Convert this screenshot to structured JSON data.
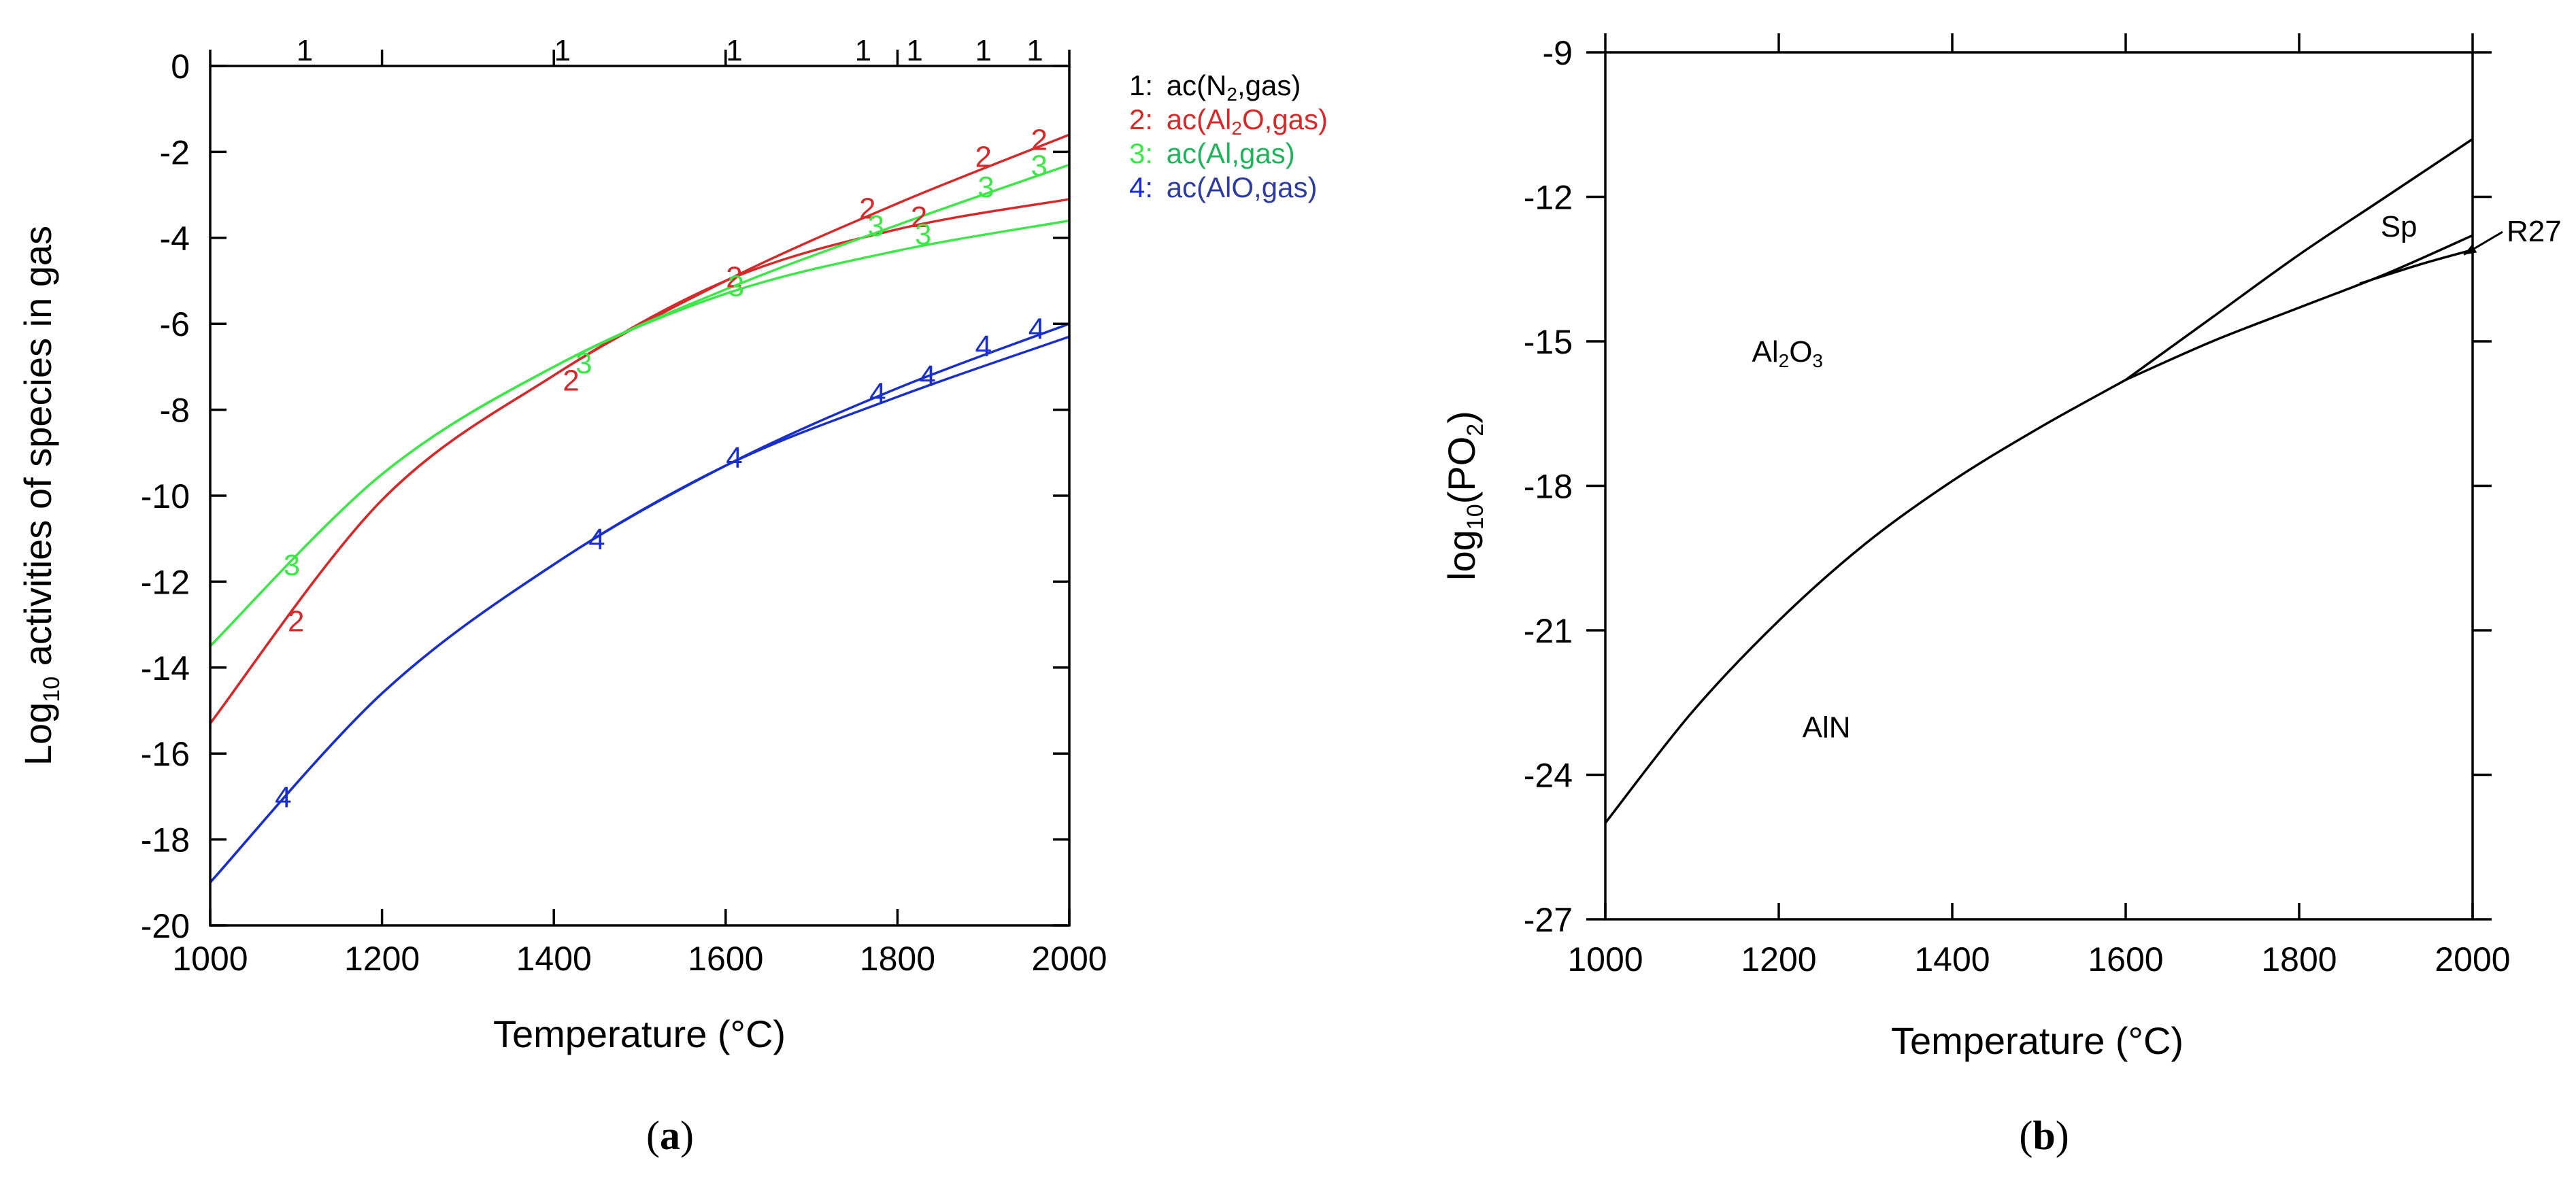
{
  "chart_data": [
    {
      "id": "a",
      "type": "line",
      "caption": "a",
      "xlabel": "Temperature (°C)",
      "ylabel_parts": {
        "main": "Log",
        "sub": "10",
        "rest": " activities of species in gas"
      },
      "xlim": [
        1000,
        2000
      ],
      "ylim": [
        -20,
        0
      ],
      "xticks": [
        1000,
        1200,
        1400,
        1600,
        1800,
        2000
      ],
      "yticks": [
        0,
        -2,
        -4,
        -6,
        -8,
        -10,
        -12,
        -14,
        -16,
        -18,
        -20
      ],
      "top_marks": [
        {
          "x": 1110,
          "label": "1"
        },
        {
          "x": 1410,
          "label": "1"
        },
        {
          "x": 1610,
          "label": "1"
        },
        {
          "x": 1760,
          "label": "1"
        },
        {
          "x": 1820,
          "label": "1"
        },
        {
          "x": 1900,
          "label": "1"
        },
        {
          "x": 1960,
          "label": "1"
        }
      ],
      "legend": [
        {
          "num": "1:",
          "pre": "ac(N",
          "sub": "2",
          "post": ",gas)",
          "color": "#000000"
        },
        {
          "num": "2:",
          "pre": "ac(Al",
          "sub": "2",
          "post": "O,gas)",
          "color": "#d42a2a"
        },
        {
          "num": "3:",
          "pre": "ac(Al,gas)",
          "sub": "",
          "post": "",
          "color": "#21b35b"
        },
        {
          "num": "4:",
          "pre": "ac(AlO,gas)",
          "sub": "",
          "post": "",
          "color": "#2d3c9e"
        }
      ],
      "series": [
        {
          "name": "2: ac(Al2O,gas) upper",
          "color": "#d42a2a",
          "x": [
            1000,
            1200,
            1400,
            1600,
            1800,
            2000
          ],
          "values": [
            -15.3,
            -10.1,
            -7.2,
            -5.0,
            -3.2,
            -1.6
          ]
        },
        {
          "name": "2: ac(Al2O,gas) lower",
          "color": "#d42a2a",
          "x": [
            1000,
            1200,
            1400,
            1600,
            1800,
            2000
          ],
          "values": [
            -15.3,
            -10.1,
            -7.2,
            -5.0,
            -3.8,
            -3.1
          ]
        },
        {
          "name": "3: ac(Al,gas) upper",
          "color": "#3ee64a",
          "x": [
            1000,
            1200,
            1400,
            1600,
            1800,
            2000
          ],
          "values": [
            -13.5,
            -9.5,
            -7.0,
            -5.2,
            -3.7,
            -2.3
          ]
        },
        {
          "name": "3: ac(Al,gas) lower",
          "color": "#3ee64a",
          "x": [
            1000,
            1200,
            1400,
            1600,
            1800,
            2000
          ],
          "values": [
            -13.5,
            -9.5,
            -7.0,
            -5.3,
            -4.3,
            -3.6
          ]
        },
        {
          "name": "4: ac(AlO,gas) upper",
          "color": "#1a2fc9",
          "x": [
            1000,
            1200,
            1400,
            1600,
            1800,
            2000
          ],
          "values": [
            -19.0,
            -14.6,
            -11.6,
            -9.3,
            -7.5,
            -6.0
          ]
        },
        {
          "name": "4: ac(AlO,gas) lower",
          "color": "#1a2fc9",
          "x": [
            1000,
            1200,
            1400,
            1600,
            1800,
            2000
          ],
          "values": [
            -19.0,
            -14.6,
            -11.6,
            -9.3,
            -7.7,
            -6.3
          ]
        }
      ],
      "curve_labels": [
        {
          "x": 1100,
          "y": -12.9,
          "label": "2",
          "color": "#d42a2a"
        },
        {
          "x": 1420,
          "y": -7.3,
          "label": "2",
          "color": "#d42a2a"
        },
        {
          "x": 1610,
          "y": -4.9,
          "label": "2",
          "color": "#d42a2a"
        },
        {
          "x": 1765,
          "y": -3.3,
          "label": "2",
          "color": "#d42a2a"
        },
        {
          "x": 1825,
          "y": -3.5,
          "label": "2",
          "color": "#d42a2a"
        },
        {
          "x": 1900,
          "y": -2.1,
          "label": "2",
          "color": "#d42a2a"
        },
        {
          "x": 1965,
          "y": -1.7,
          "label": "2",
          "color": "#d42a2a"
        },
        {
          "x": 1095,
          "y": -11.6,
          "label": "3",
          "color": "#3ee64a"
        },
        {
          "x": 1435,
          "y": -6.9,
          "label": "3",
          "color": "#3ee64a"
        },
        {
          "x": 1612,
          "y": -5.1,
          "label": "3",
          "color": "#3ee64a"
        },
        {
          "x": 1775,
          "y": -3.7,
          "label": "3",
          "color": "#3ee64a"
        },
        {
          "x": 1830,
          "y": -3.9,
          "label": "3",
          "color": "#3ee64a"
        },
        {
          "x": 1903,
          "y": -2.8,
          "label": "3",
          "color": "#3ee64a"
        },
        {
          "x": 1965,
          "y": -2.3,
          "label": "3",
          "color": "#3ee64a"
        },
        {
          "x": 1085,
          "y": -17.0,
          "label": "4",
          "color": "#1a2fc9"
        },
        {
          "x": 1450,
          "y": -11.0,
          "label": "4",
          "color": "#1a2fc9"
        },
        {
          "x": 1610,
          "y": -9.1,
          "label": "4",
          "color": "#1a2fc9"
        },
        {
          "x": 1777,
          "y": -7.6,
          "label": "4",
          "color": "#1a2fc9"
        },
        {
          "x": 1835,
          "y": -7.2,
          "label": "4",
          "color": "#1a2fc9"
        },
        {
          "x": 1900,
          "y": -6.5,
          "label": "4",
          "color": "#1a2fc9"
        },
        {
          "x": 1962,
          "y": -6.1,
          "label": "4",
          "color": "#1a2fc9"
        }
      ]
    },
    {
      "id": "b",
      "type": "line",
      "caption": "b",
      "xlabel": "Temperature (°C)",
      "ylabel_parts": {
        "pre": "log",
        "sub1": "10",
        "mid": "(PO",
        "sub2": "2",
        "post": ")"
      },
      "xlim": [
        1000,
        2000
      ],
      "ylim": [
        -27,
        -9
      ],
      "xticks": [
        1000,
        1200,
        1400,
        1600,
        1800,
        2000
      ],
      "yticks": [
        -9,
        -12,
        -15,
        -18,
        -21,
        -24,
        -27
      ],
      "series": [
        {
          "name": "Al2O3/AlN boundary",
          "x": [
            1000,
            1100,
            1200,
            1300,
            1400,
            1500,
            1600
          ],
          "values": [
            -25.0,
            -22.7,
            -20.8,
            -19.2,
            -17.9,
            -16.8,
            -15.8
          ]
        },
        {
          "name": "Al2O3/Sp boundary",
          "x": [
            1600,
            1700,
            1800,
            1900,
            2000
          ],
          "values": [
            -15.8,
            -14.5,
            -13.2,
            -12.0,
            -10.8
          ]
        },
        {
          "name": "Sp/AlN boundary",
          "x": [
            1600,
            1700,
            1800,
            1900,
            2000
          ],
          "values": [
            -15.8,
            -15.0,
            -14.3,
            -13.6,
            -12.8
          ]
        },
        {
          "name": "R27",
          "x": [
            1870,
            1940,
            2000
          ],
          "values": [
            -13.8,
            -13.4,
            -13.1
          ]
        }
      ],
      "regions": [
        {
          "label_pre": "Al",
          "sub1": "2",
          "mid": "O",
          "sub2": "3",
          "x": 1210,
          "y": -15.2
        },
        {
          "label": "AlN",
          "x": 1255,
          "y": -23.0
        },
        {
          "label": "Sp",
          "x": 1915,
          "y": -12.6
        }
      ],
      "annotation": {
        "label": "R27",
        "x": 1990,
        "y": -13.2
      }
    }
  ]
}
